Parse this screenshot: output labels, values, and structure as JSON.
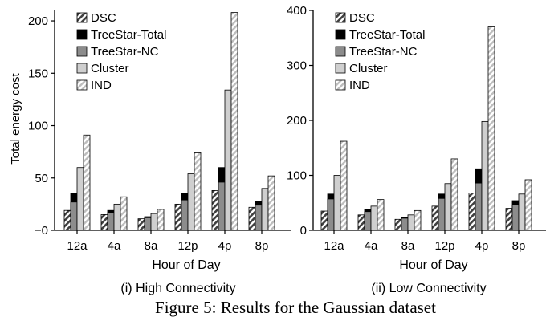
{
  "figure": {
    "caption": "Figure 5: Results for the Gaussian dataset"
  },
  "colors": {
    "DSC": "#4a4a4a",
    "TreeStar-Total": "#000000",
    "TreeStar-NC": "#8c8c8c",
    "Cluster": "#cfcfcf",
    "IND": "#d9d9d9",
    "stroke": "#000000"
  },
  "chart_data": [
    {
      "type": "bar",
      "title": "",
      "subtitle": "(i) High Connectivity",
      "xlabel": "Hour of Day",
      "ylabel": "Total energy cost",
      "ylim": [
        0,
        210
      ],
      "yticks": [
        0,
        50,
        100,
        150,
        200
      ],
      "ytick_labels": [
        "−0",
        "50",
        "100",
        "150",
        "200"
      ],
      "categories": [
        "12a",
        "4a",
        "8a",
        "12p",
        "4p",
        "8p"
      ],
      "series": [
        {
          "name": "DSC",
          "pattern": "hatch-dark",
          "values": [
            19,
            15,
            11,
            25,
            38,
            22
          ]
        },
        {
          "name": "TreeStar-Total",
          "pattern": "solid-black",
          "values": [
            35,
            19,
            13,
            35,
            60,
            28
          ]
        },
        {
          "name": "TreeStar-NC",
          "pattern": "solid-gray",
          "values": [
            27,
            17,
            12,
            29,
            46,
            24
          ]
        },
        {
          "name": "Cluster",
          "pattern": "solid-light",
          "values": [
            60,
            25,
            16,
            54,
            134,
            40
          ]
        },
        {
          "name": "IND",
          "pattern": "hatch-light",
          "values": [
            91,
            32,
            20,
            74,
            208,
            52
          ]
        }
      ],
      "overlay": {
        "base": "TreeStar-Total",
        "top": "TreeStar-NC"
      },
      "legend": "top-left",
      "grid": false
    },
    {
      "type": "bar",
      "title": "",
      "subtitle": "(ii) Low Connectivity",
      "xlabel": "Hour of Day",
      "ylabel": "",
      "ylim": [
        0,
        400
      ],
      "yticks": [
        0,
        100,
        200,
        300,
        400
      ],
      "ytick_labels": [
        "0",
        "100",
        "200",
        "300",
        "400"
      ],
      "categories": [
        "12a",
        "4a",
        "8a",
        "12p",
        "4p",
        "8p"
      ],
      "series": [
        {
          "name": "DSC",
          "pattern": "hatch-dark",
          "values": [
            35,
            28,
            20,
            44,
            68,
            40
          ]
        },
        {
          "name": "TreeStar-Total",
          "pattern": "solid-black",
          "values": [
            66,
            38,
            24,
            66,
            112,
            54
          ]
        },
        {
          "name": "TreeStar-NC",
          "pattern": "solid-gray",
          "values": [
            57,
            34,
            22,
            58,
            86,
            46
          ]
        },
        {
          "name": "Cluster",
          "pattern": "solid-light",
          "values": [
            100,
            44,
            28,
            85,
            198,
            66
          ]
        },
        {
          "name": "IND",
          "pattern": "hatch-light",
          "values": [
            162,
            56,
            36,
            130,
            370,
            92
          ]
        }
      ],
      "overlay": {
        "base": "TreeStar-Total",
        "top": "TreeStar-NC"
      },
      "legend": "top-left",
      "grid": false
    }
  ]
}
